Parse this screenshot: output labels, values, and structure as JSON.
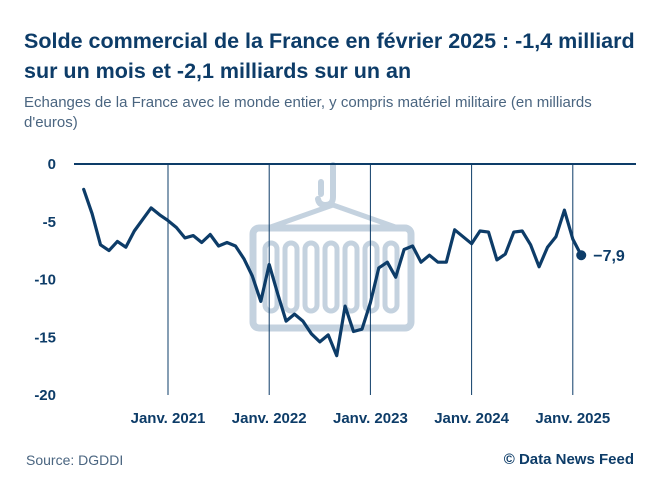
{
  "header": {
    "title": "Solde commercial de la France en février 2025 : -1,4 milliard sur un mois et -2,1 milliards sur un an",
    "subtitle": "Echanges de la France avec le monde entier, y compris matériel militaire (en milliards d'euros)"
  },
  "footer": {
    "source": "Source: DGDDI",
    "credit": "© Data News Feed"
  },
  "colors": {
    "line": "#0d3c68",
    "watermark": "#c4d2df",
    "axis_text": "#0d3c68"
  },
  "chart_data": {
    "type": "line",
    "title": "Solde commercial de la France en février 2025 : -1,4 milliard sur un mois et -2,1 milliards sur un an",
    "ylim": [
      -20,
      0
    ],
    "y_ticks": [
      0,
      -5,
      -10,
      -15,
      -20
    ],
    "y_tick_labels": [
      "0",
      "-5",
      "-10",
      "-15",
      "-20"
    ],
    "x_tick_labels": [
      "Janv. 2021",
      "Janv. 2022",
      "Janv. 2023",
      "Janv. 2024",
      "Janv. 2025"
    ],
    "x_tick_dates": [
      "2021-01",
      "2022-01",
      "2023-01",
      "2024-01",
      "2025-01"
    ],
    "grid": "vertical lines at January of each year",
    "last_value_label": "−7,9",
    "series": [
      {
        "x": [
          "2020-03",
          "2020-04",
          "2020-05",
          "2020-06",
          "2020-07",
          "2020-08",
          "2020-09",
          "2020-10",
          "2020-11",
          "2020-12",
          "2021-01",
          "2021-02",
          "2021-03",
          "2021-04",
          "2021-05",
          "2021-06",
          "2021-07",
          "2021-08",
          "2021-09",
          "2021-10",
          "2021-11",
          "2021-12",
          "2022-01",
          "2022-02",
          "2022-03",
          "2022-04",
          "2022-05",
          "2022-06",
          "2022-07",
          "2022-08",
          "2022-09",
          "2022-10",
          "2022-11",
          "2022-12",
          "2023-01",
          "2023-02",
          "2023-03",
          "2023-04",
          "2023-05",
          "2023-06",
          "2023-07",
          "2023-08",
          "2023-09",
          "2023-10",
          "2023-11",
          "2023-12",
          "2024-01",
          "2024-02",
          "2024-03",
          "2024-04",
          "2024-05",
          "2024-06",
          "2024-07",
          "2024-08",
          "2024-09",
          "2024-10",
          "2024-11",
          "2024-12",
          "2025-01",
          "2025-02"
        ],
        "values": [
          -2.2,
          -4.3,
          -7.0,
          -7.5,
          -6.7,
          -7.2,
          -5.8,
          -4.8,
          -3.8,
          -4.4,
          -4.9,
          -5.5,
          -6.4,
          -6.2,
          -6.8,
          -6.1,
          -7.1,
          -6.8,
          -7.1,
          -8.2,
          -9.7,
          -11.9,
          -8.7,
          -11.2,
          -13.6,
          -13.0,
          -13.6,
          -14.7,
          -15.4,
          -14.8,
          -16.6,
          -12.3,
          -14.5,
          -14.3,
          -12.0,
          -9.0,
          -8.5,
          -9.8,
          -7.4,
          -7.1,
          -8.5,
          -7.9,
          -8.5,
          -8.5,
          -5.7,
          -6.3,
          -6.9,
          -5.8,
          -5.9,
          -8.3,
          -7.8,
          -5.9,
          -5.8,
          -7.0,
          -8.9,
          -7.2,
          -6.3,
          -4.0,
          -6.5,
          -7.9
        ]
      }
    ]
  }
}
